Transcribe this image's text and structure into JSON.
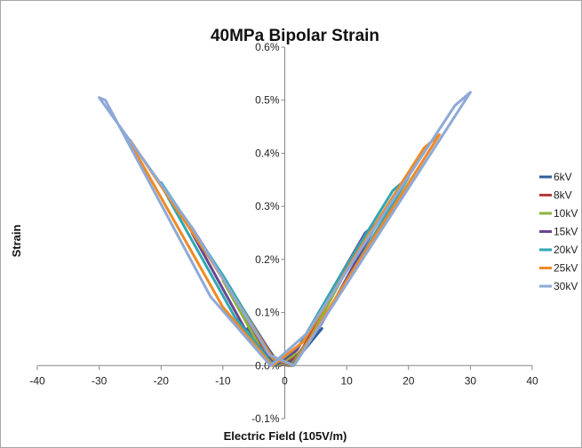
{
  "chart_data": {
    "type": "line",
    "title": "40MPa Bipolar Strain",
    "xlabel": "Electric Field (105V/m)",
    "ylabel": "Strain",
    "xlim": [
      -40,
      40
    ],
    "ylim": [
      -0.1,
      0.6
    ],
    "x_ticks": [
      -40,
      -30,
      -20,
      -10,
      0,
      10,
      20,
      30,
      40
    ],
    "x_tick_labels": [
      "-40",
      "-30",
      "-20",
      "-10",
      "0",
      "10",
      "20",
      "30",
      "40"
    ],
    "y_ticks": [
      -0.1,
      0.0,
      0.1,
      0.2,
      0.3,
      0.4,
      0.5,
      0.6
    ],
    "y_tick_labels": [
      "-0.1%",
      "0.0%",
      "0.1%",
      "0.2%",
      "0.3%",
      "0.4%",
      "0.5%",
      "0.6%"
    ],
    "grid": false,
    "legend_position": "right",
    "series": [
      {
        "name": "6kV",
        "color": "#2f5f9b",
        "x": [
          -6,
          -3,
          -1,
          0.6,
          2.5,
          6,
          4.8,
          2.5,
          1,
          -0.8,
          -2.5,
          -6
        ],
        "y": [
          0.07,
          0.03,
          0.003,
          0.0,
          0.02,
          0.07,
          0.055,
          0.025,
          0.01,
          0.0,
          0.015,
          0.07
        ]
      },
      {
        "name": "8kV",
        "color": "#b83b3b",
        "x": [
          -8,
          -4,
          -1,
          0.8,
          3,
          8,
          6.6,
          3.5,
          1.2,
          -1,
          -3,
          -8
        ],
        "y": [
          0.12,
          0.05,
          0.004,
          0.0,
          0.035,
          0.14,
          0.12,
          0.06,
          0.015,
          0.0,
          0.025,
          0.12
        ]
      },
      {
        "name": "10kV",
        "color": "#8db33f",
        "x": [
          -10,
          -5,
          -1,
          1,
          4,
          10,
          8.5,
          4.5,
          1.5,
          -1.2,
          -4,
          -10
        ],
        "y": [
          0.16,
          0.07,
          0.005,
          0.0,
          0.05,
          0.18,
          0.16,
          0.08,
          0.02,
          0.0,
          0.035,
          0.16
        ]
      },
      {
        "name": "15kV",
        "color": "#6a4691",
        "x": [
          -15,
          -8,
          -1.5,
          1.2,
          6,
          15,
          13,
          7,
          2,
          -1.5,
          -6,
          -15
        ],
        "y": [
          0.26,
          0.13,
          0.01,
          0.0,
          0.08,
          0.27,
          0.25,
          0.13,
          0.03,
          0.0,
          0.06,
          0.25
        ]
      },
      {
        "name": "20kV",
        "color": "#2fa7b5",
        "x": [
          -20,
          -10,
          -2,
          1.3,
          8,
          20,
          17.5,
          9,
          2.5,
          -1.8,
          -8,
          -20
        ],
        "y": [
          0.345,
          0.17,
          0.015,
          0.0,
          0.12,
          0.355,
          0.33,
          0.17,
          0.04,
          0.0,
          0.09,
          0.34
        ]
      },
      {
        "name": "25kV",
        "color": "#f08a24",
        "x": [
          -25,
          -12,
          -2,
          1.4,
          10,
          25,
          22.5,
          11,
          3,
          -2,
          -10,
          -25
        ],
        "y": [
          0.425,
          0.2,
          0.015,
          0.0,
          0.16,
          0.435,
          0.41,
          0.2,
          0.045,
          0.0,
          0.11,
          0.42
        ]
      },
      {
        "name": "30kV",
        "color": "#8ea9d6",
        "x": [
          -30,
          -15,
          -2.5,
          1.5,
          12,
          30,
          27.5,
          14,
          3.5,
          -2.3,
          -12,
          -29,
          -30
        ],
        "y": [
          0.505,
          0.26,
          0.02,
          0.0,
          0.19,
          0.515,
          0.49,
          0.25,
          0.06,
          0.0,
          0.13,
          0.5,
          0.505
        ]
      }
    ]
  }
}
